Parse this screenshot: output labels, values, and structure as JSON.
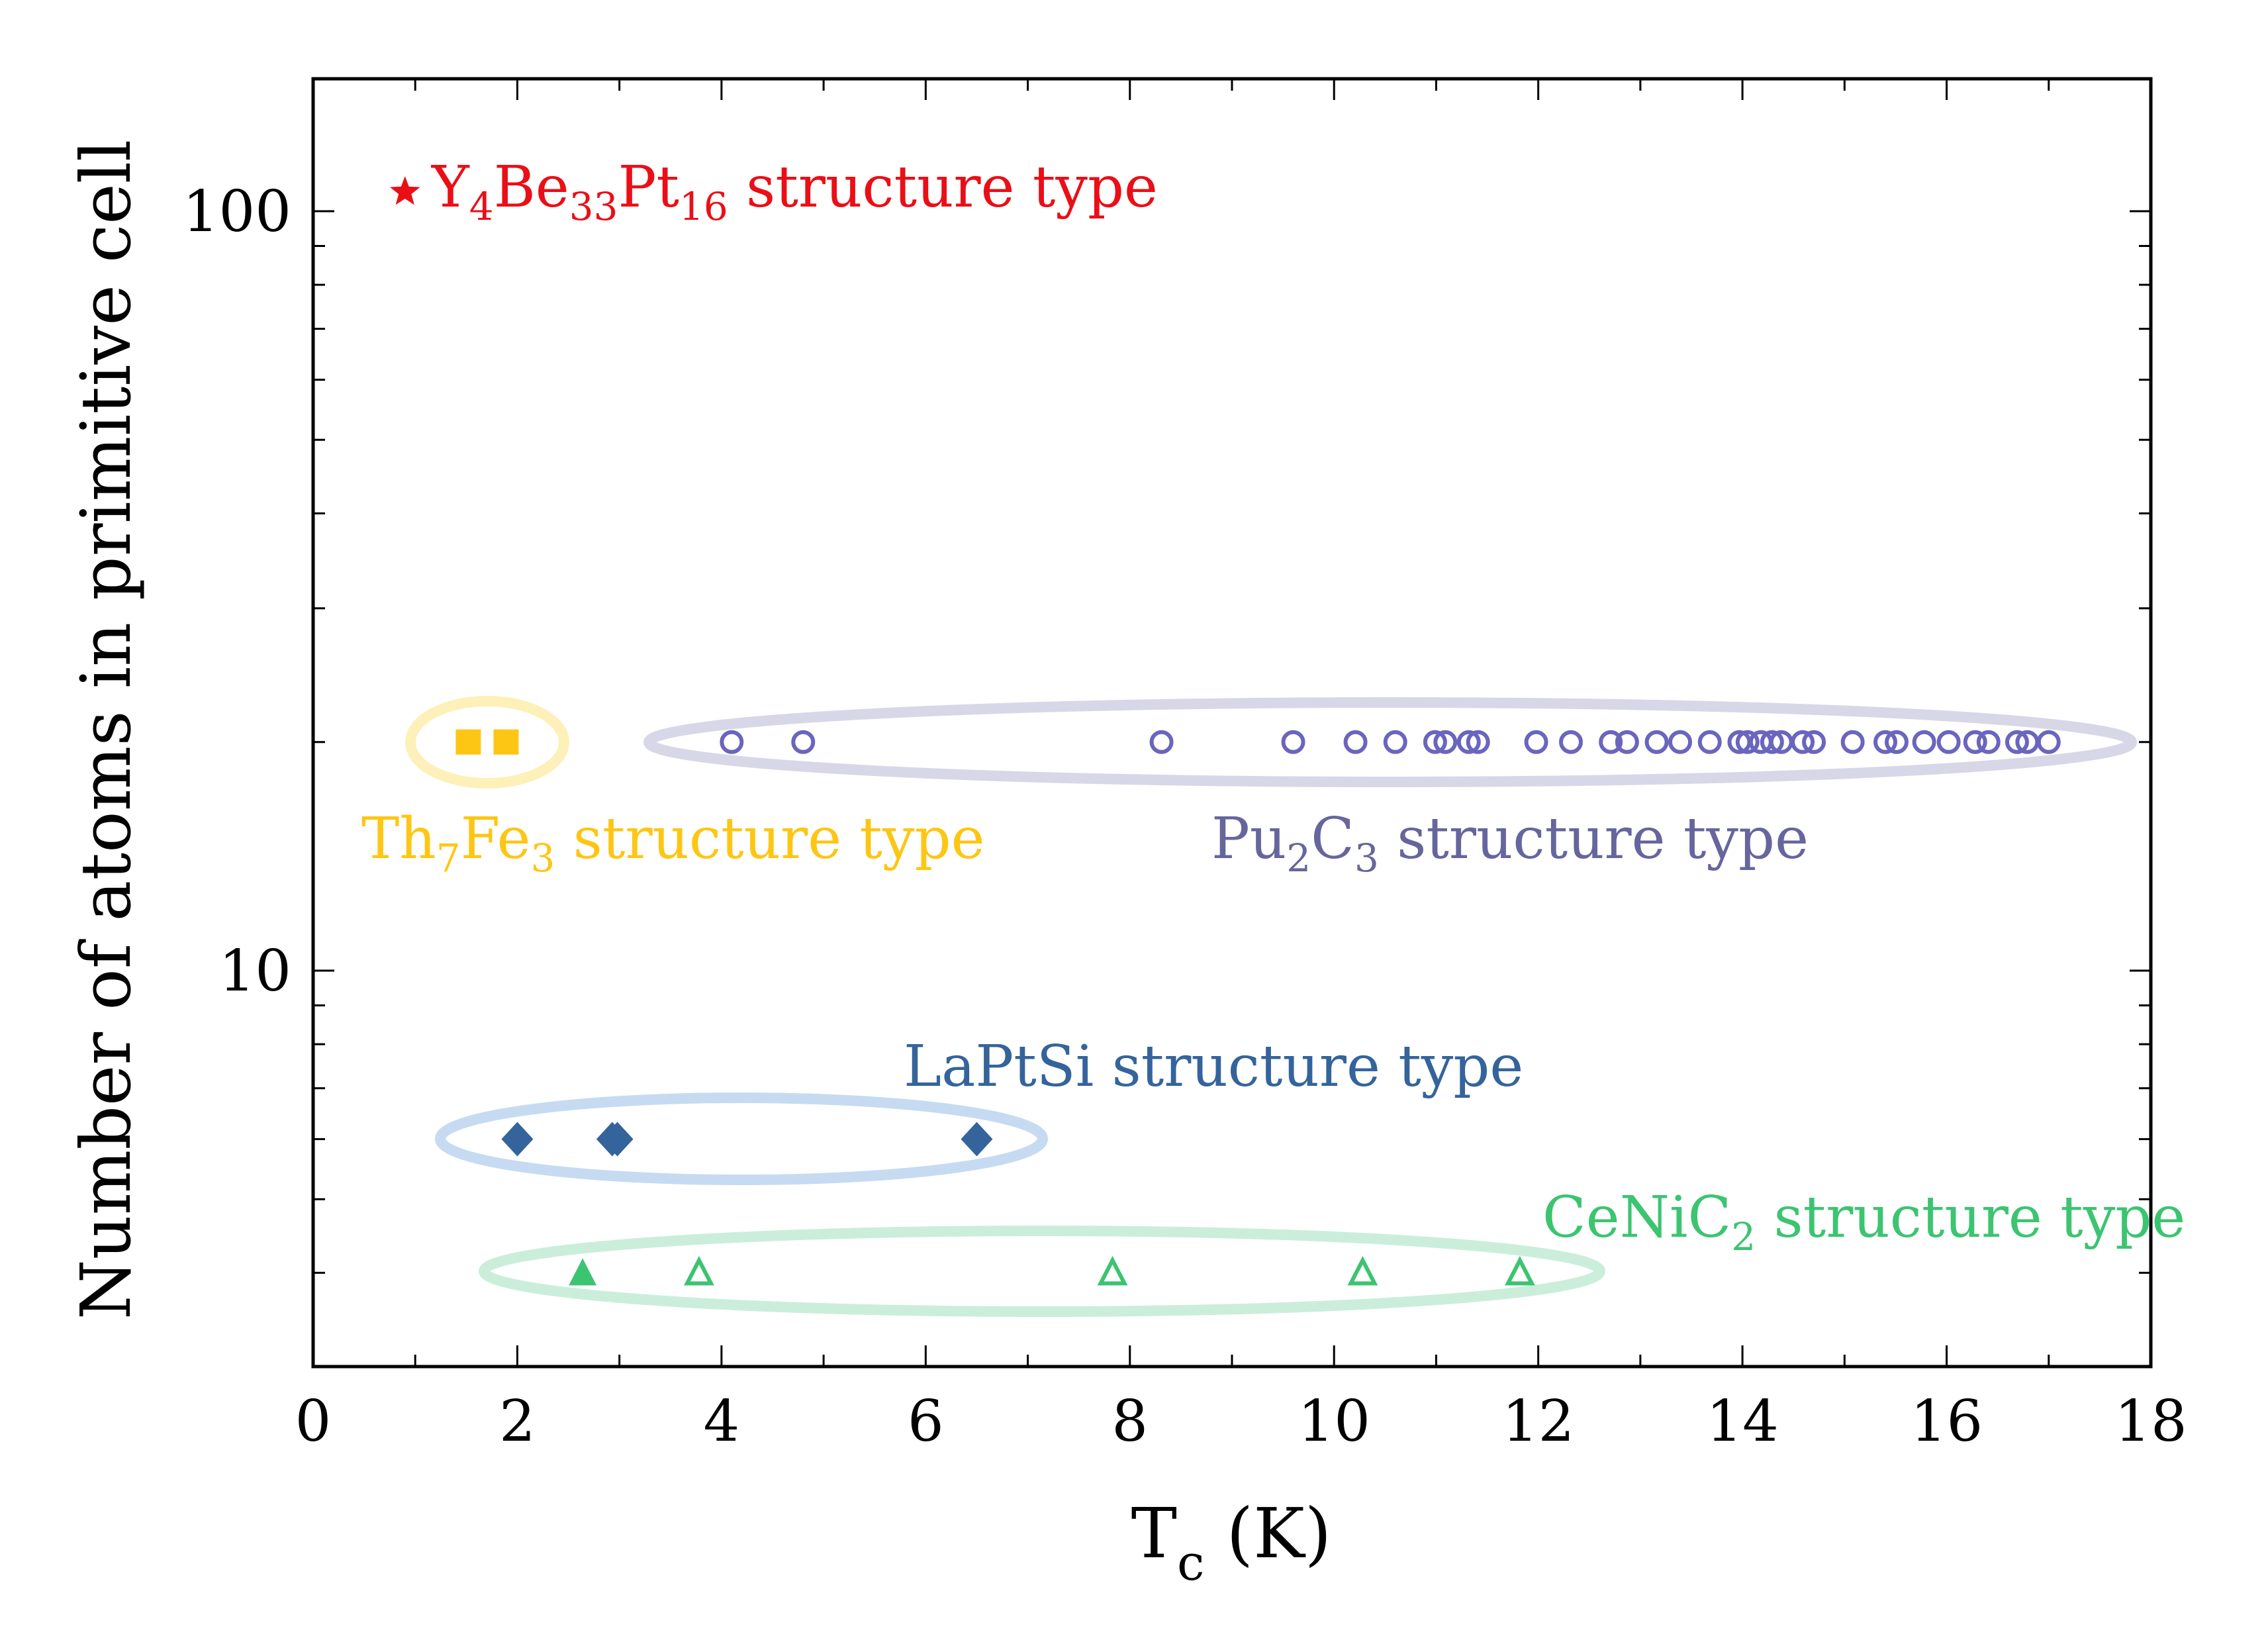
{
  "chart_data": {
    "type": "scatter",
    "title": "",
    "xlabel": {
      "main": "T",
      "sub": "c",
      "unit": " (K)"
    },
    "ylabel": "Number of atoms in primitive cell",
    "xlim": [
      0,
      18
    ],
    "ylim": [
      3,
      150
    ],
    "yscale": "log",
    "grid": false,
    "x_ticks": [
      0,
      2,
      4,
      6,
      8,
      10,
      12,
      14,
      16,
      18
    ],
    "x_tick_labels": [
      "0",
      "2",
      "4",
      "6",
      "8",
      "10",
      "12",
      "14",
      "16",
      "18"
    ],
    "y_major_ticks": [
      10,
      100
    ],
    "y_tick_labels": [
      "10",
      "100"
    ],
    "y_minor_ticks": [
      4,
      5,
      6,
      7,
      8,
      9,
      20,
      30,
      40,
      50,
      60,
      70,
      80,
      90
    ],
    "series": [
      {
        "name": "Y4Be33Pt16 structure type",
        "label_parts": [
          {
            "t": "Y",
            "s": false
          },
          {
            "t": "4",
            "s": true
          },
          {
            "t": "Be",
            "s": false
          },
          {
            "t": "33",
            "s": true
          },
          {
            "t": "Pt",
            "s": false
          },
          {
            "t": "16",
            "s": true
          },
          {
            "t": " structure type",
            "s": false
          }
        ],
        "marker": "star-filled",
        "color": "#ea0f17",
        "ellipse_color": null,
        "x": [
          0.9
        ],
        "y": [
          106
        ]
      },
      {
        "name": "Th7Fe3 structure type",
        "label_parts": [
          {
            "t": "Th",
            "s": false
          },
          {
            "t": "7",
            "s": true
          },
          {
            "t": "Fe",
            "s": false
          },
          {
            "t": "3",
            "s": true
          },
          {
            "t": " structure type",
            "s": false
          }
        ],
        "marker": "square-filled",
        "color": "#fdc614",
        "ellipse_color": "#fdf0b9",
        "x": [
          1.52,
          1.89
        ],
        "y": [
          20,
          20
        ]
      },
      {
        "name": "Pu2C3 structure type",
        "label_parts": [
          {
            "t": "Pu",
            "s": false
          },
          {
            "t": "2",
            "s": true
          },
          {
            "t": "C",
            "s": false
          },
          {
            "t": "3",
            "s": true
          },
          {
            "t": " structure type",
            "s": false
          }
        ],
        "marker": "circle-open",
        "color": "#6a65bd",
        "text_color": "#66659e",
        "ellipse_color": "#d8d7e8",
        "x": [
          4.1,
          4.8,
          8.31,
          9.6,
          10.21,
          10.6,
          10.99,
          11.09,
          11.32,
          11.41,
          11.98,
          12.32,
          12.71,
          12.87,
          13.16,
          13.39,
          13.68,
          13.97,
          14.05,
          14.18,
          14.29,
          14.38,
          14.59,
          14.7,
          15.08,
          15.4,
          15.51,
          15.78,
          16.02,
          16.28,
          16.41,
          16.69,
          16.79,
          17.0
        ],
        "y": [
          20,
          20,
          20,
          20,
          20,
          20,
          20,
          20,
          20,
          20,
          20,
          20,
          20,
          20,
          20,
          20,
          20,
          20,
          20,
          20,
          20,
          20,
          20,
          20,
          20,
          20,
          20,
          20,
          20,
          20,
          20,
          20,
          20,
          20
        ]
      },
      {
        "name": "LaPtSi structure type",
        "label_parts": [
          {
            "t": "LaPtSi structure type",
            "s": false
          }
        ],
        "marker": "diamond-filled",
        "color": "#34649b",
        "ellipse_color": "#c6dbf1",
        "x": [
          2.0,
          2.93,
          2.98,
          6.5
        ],
        "y": [
          6,
          6,
          6,
          6
        ]
      },
      {
        "name": "CeNiC2 structure type",
        "label_parts": [
          {
            "t": "CeNiC",
            "s": false
          },
          {
            "t": "2",
            "s": true
          },
          {
            "t": " structure type",
            "s": false
          }
        ],
        "marker": "triangle",
        "filled": [
          true,
          false,
          false,
          false,
          false
        ],
        "color": "#3cc471",
        "ellipse_color": "#cbeedb",
        "x": [
          2.64,
          3.78,
          7.83,
          10.28,
          11.82
        ],
        "y": [
          4,
          4,
          4,
          4,
          4
        ]
      }
    ]
  }
}
